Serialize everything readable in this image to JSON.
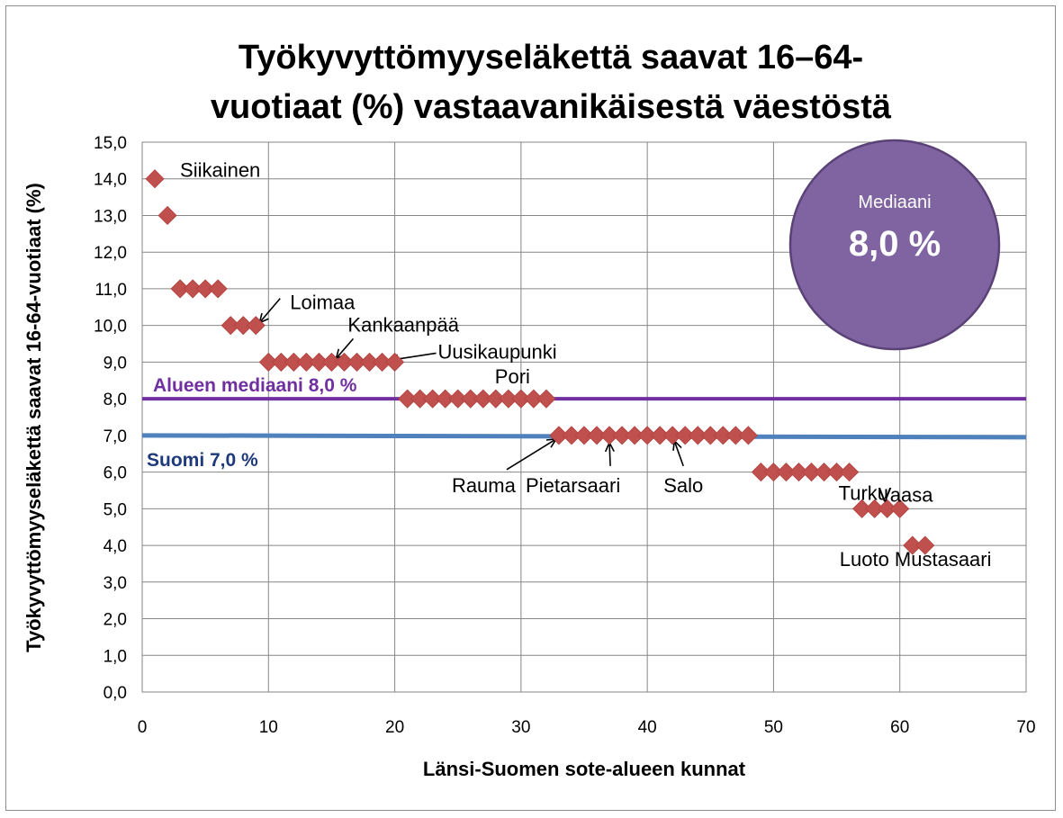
{
  "chart_data": {
    "type": "scatter",
    "title_lines": [
      "Työkyvyttömyyseläkettä saavat 16–64-",
      "vuotiaat (%) vastaavanikäisestä väestöstä"
    ],
    "xlabel": "Länsi-Suomen sote-alueen kunnat",
    "ylabel": "Työkyvyttömyyseläkettä saavat 16-64-vuotiaat (%)",
    "xlim": [
      0,
      70
    ],
    "ylim": [
      0,
      15
    ],
    "x_ticks": [
      "0",
      "10",
      "20",
      "30",
      "40",
      "50",
      "60",
      "70"
    ],
    "y_ticks": [
      "0,0",
      "1,0",
      "2,0",
      "3,0",
      "4,0",
      "5,0",
      "6,0",
      "7,0",
      "8,0",
      "9,0",
      "10,0",
      "11,0",
      "12,0",
      "13,0",
      "14,0",
      "15,0"
    ],
    "grid": true,
    "marker": "diamond",
    "marker_color": "#c0504d",
    "series": [
      {
        "x": [
          1,
          2,
          3,
          4,
          5,
          6,
          7,
          8,
          9,
          10,
          11,
          12,
          13,
          14,
          15,
          16,
          17,
          18,
          19,
          20,
          21,
          22,
          23,
          24,
          25,
          26,
          27,
          28,
          29,
          30,
          31,
          32,
          33,
          34,
          35,
          36,
          37,
          38,
          39,
          40,
          41,
          42,
          43,
          44,
          45,
          46,
          47,
          48,
          49,
          50,
          51,
          52,
          53,
          54,
          55,
          56,
          57,
          58,
          59,
          60,
          61,
          62
        ],
        "y": [
          14,
          13,
          11,
          11,
          11,
          11,
          10,
          10,
          10,
          9,
          9,
          9,
          9,
          9,
          9,
          9,
          9,
          9,
          9,
          9,
          8,
          8,
          8,
          8,
          8,
          8,
          8,
          8,
          8,
          8,
          8,
          8,
          7,
          7,
          7,
          7,
          7,
          7,
          7,
          7,
          7,
          7,
          7,
          7,
          7,
          7,
          7,
          7,
          6,
          6,
          6,
          6,
          6,
          6,
          6,
          6,
          5,
          5,
          5,
          5,
          4,
          4
        ]
      }
    ],
    "reference_lines": [
      {
        "label": "Alueen mediaani 8,0 %",
        "y": 8.0,
        "color": "#7030a0"
      },
      {
        "label": "Suomi 7,0 %",
        "y": 7.0,
        "color": "#4f81bd"
      }
    ],
    "annotations": [
      {
        "text": "Siikainen",
        "x": 1,
        "y": 14
      },
      {
        "text": "Loimaa",
        "x": 9,
        "y": 10
      },
      {
        "text": "Kankaanpää",
        "x": 15,
        "y": 9
      },
      {
        "text": "Uusikaupunki",
        "x": 19,
        "y": 9
      },
      {
        "text": "Pori",
        "x": 28,
        "y": 8
      },
      {
        "text": "Rauma",
        "x": 33,
        "y": 7
      },
      {
        "text": "Pietarsaari",
        "x": 37,
        "y": 7
      },
      {
        "text": "Salo",
        "x": 42,
        "y": 7
      },
      {
        "text": "Turku",
        "x": 56,
        "y": 6
      },
      {
        "text": "Vaasa",
        "x": 60,
        "y": 5
      },
      {
        "text": "Luoto Mustasaari",
        "x": 61.5,
        "y": 4
      }
    ],
    "median_badge": {
      "label": "Mediaani",
      "value": "8,0 %",
      "color": "#8064a2"
    }
  }
}
